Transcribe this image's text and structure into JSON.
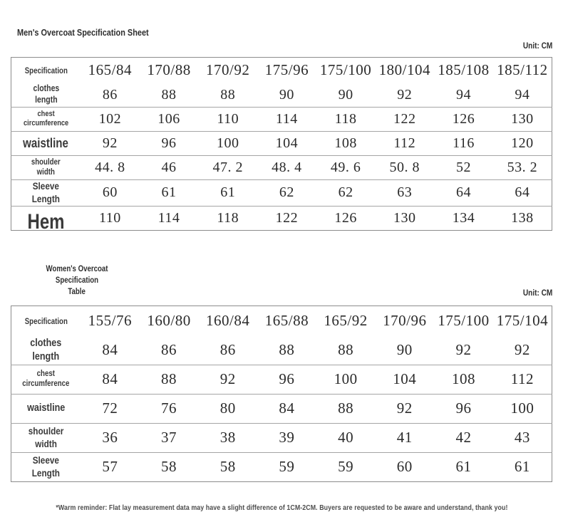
{
  "page": {
    "background": "#ffffff",
    "text_color": "#2e2e2e",
    "outer_border_color": "#8c8c8c",
    "row_line_color": "#a5a5a5"
  },
  "men": {
    "title": "Men's Overcoat Specification Sheet",
    "unit_label": "Unit: CM",
    "header_label": "Specification",
    "columns": [
      "165/84",
      "170/88",
      "170/92",
      "175/96",
      "175/100",
      "180/104",
      "185/108",
      "185/112"
    ],
    "rows": [
      {
        "label": "clothes\nlength",
        "values": [
          "86",
          "88",
          "88",
          "90",
          "90",
          "92",
          "94",
          "94"
        ]
      },
      {
        "label": "chest\ncircumference",
        "values": [
          "102",
          "106",
          "110",
          "114",
          "118",
          "122",
          "126",
          "130"
        ]
      },
      {
        "label": "waistline",
        "values": [
          "92",
          "96",
          "100",
          "104",
          "108",
          "112",
          "116",
          "120"
        ]
      },
      {
        "label": "shoulder\nwidth",
        "values": [
          "44. 8",
          "46",
          "47. 2",
          "48. 4",
          "49. 6",
          "50. 8",
          "52",
          "53. 2"
        ]
      },
      {
        "label": "Sleeve\nLength",
        "values": [
          "60",
          "61",
          "61",
          "62",
          "62",
          "63",
          "64",
          "64"
        ]
      },
      {
        "label": "Hem",
        "values": [
          "110",
          "114",
          "118",
          "122",
          "126",
          "130",
          "134",
          "138"
        ]
      }
    ]
  },
  "women": {
    "title_line1": "Women's Overcoat Specification",
    "title_line2": "Table",
    "unit_label": "Unit: CM",
    "header_label": "Specification",
    "columns": [
      "155/76",
      "160/80",
      "160/84",
      "165/88",
      "165/92",
      "170/96",
      "175/100",
      "175/104"
    ],
    "rows": [
      {
        "label": "clothes\nlength",
        "values": [
          "84",
          "86",
          "86",
          "88",
          "88",
          "90",
          "92",
          "92"
        ]
      },
      {
        "label": "chest\ncircumference",
        "values": [
          "84",
          "88",
          "92",
          "96",
          "100",
          "104",
          "108",
          "112"
        ]
      },
      {
        "label": "waistline",
        "values": [
          "72",
          "76",
          "80",
          "84",
          "88",
          "92",
          "96",
          "100"
        ]
      },
      {
        "label": "shoulder\nwidth",
        "values": [
          "36",
          "37",
          "38",
          "39",
          "40",
          "41",
          "42",
          "43"
        ]
      },
      {
        "label": "Sleeve\nLength",
        "values": [
          "57",
          "58",
          "58",
          "59",
          "59",
          "60",
          "61",
          "61"
        ]
      }
    ]
  },
  "footer": {
    "note": "*Warm reminder: Flat lay measurement data may have a slight difference of 1CM-2CM. Buyers are requested to be aware and understand, thank you!"
  }
}
